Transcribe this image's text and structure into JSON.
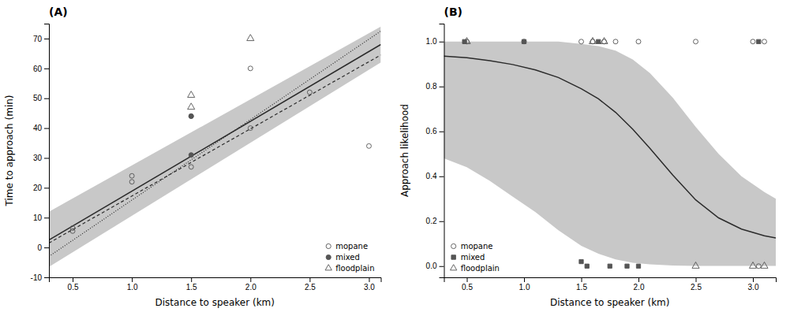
{
  "chart_data": [
    {
      "type": "scatter",
      "title": "(A)",
      "x_label": "Distance to speaker (km)",
      "y_label": "Time to approach (min)",
      "xlim": [
        0.3,
        3.1
      ],
      "ylim": [
        -10,
        75
      ],
      "xticks": [
        0.5,
        {
          "value": 1.0,
          "label": "1.0"
        },
        1.5,
        {
          "value": 2.0,
          "label": "2.0"
        },
        2.5,
        {
          "value": 3.0,
          "label": "3.0"
        }
      ],
      "yticks": [
        -10,
        0,
        10,
        20,
        30,
        40,
        50,
        60,
        70
      ],
      "grid": false,
      "legend": "lower-right",
      "series": [
        {
          "type": "band",
          "color": "#c8c8c8",
          "x": [
            0.3,
            3.1
          ],
          "lower": [
            -6.5,
            62.0
          ],
          "upper": [
            12.0,
            74.0
          ]
        },
        {
          "type": "line",
          "line_style": "dotted",
          "color": "#2b2b2b",
          "x": [
            0.3,
            3.1
          ],
          "values": [
            -3.0,
            72.5
          ]
        },
        {
          "type": "line",
          "line_style": "dashed",
          "color": "#2b2b2b",
          "x": [
            0.3,
            3.1
          ],
          "values": [
            1.5,
            64.5
          ]
        },
        {
          "type": "line",
          "line_style": "solid",
          "color": "#2b2b2b",
          "x": [
            0.3,
            3.1
          ],
          "values": [
            2.5,
            68.0
          ]
        },
        {
          "type": "scatter",
          "name": "mopane",
          "marker": "circle-open",
          "color": "#555555",
          "x": [
            0.5,
            0.5,
            1.0,
            1.0,
            1.5,
            1.5,
            2.0,
            2.0,
            2.5,
            3.0
          ],
          "values": [
            5.5,
            6.5,
            22,
            24,
            27,
            44,
            40,
            60,
            52,
            34
          ]
        },
        {
          "type": "scatter",
          "name": "mixed",
          "marker": "circle",
          "color": "#555555",
          "x": [
            1.5,
            1.5
          ],
          "values": [
            31,
            44
          ]
        },
        {
          "type": "scatter",
          "name": "floodplain",
          "marker": "triangle-open",
          "color": "#555555",
          "x": [
            1.5,
            1.5,
            2.0
          ],
          "values": [
            47,
            51,
            70
          ]
        }
      ]
    },
    {
      "type": "scatter",
      "title": "(B)",
      "x_label": "Distance to speaker (km)",
      "y_label": "Approach likelihood",
      "xlim": [
        0.3,
        3.2
      ],
      "ylim": [
        -0.05,
        1.08
      ],
      "xticks": [
        0.5,
        {
          "value": 1.0,
          "label": "1.0"
        },
        1.5,
        {
          "value": 2.0,
          "label": "2.0"
        },
        2.5,
        {
          "value": 3.0,
          "label": "3.0"
        }
      ],
      "yticks": [
        {
          "value": 0.0,
          "label": "0.0"
        },
        0.2,
        0.4,
        0.6,
        0.8,
        {
          "value": 1.0,
          "label": "1.0"
        }
      ],
      "grid": false,
      "legend": "lower-left",
      "series": [
        {
          "type": "band",
          "color": "#c8c8c8",
          "x": [
            0.3,
            0.5,
            0.7,
            0.9,
            1.1,
            1.3,
            1.5,
            1.65,
            1.8,
            1.95,
            2.1,
            2.3,
            2.5,
            2.7,
            2.9,
            3.1,
            3.2
          ],
          "lower": [
            0.48,
            0.44,
            0.38,
            0.31,
            0.24,
            0.16,
            0.09,
            0.055,
            0.03,
            0.015,
            0.008,
            0.003,
            0.001,
            0.001,
            0.001,
            0.001,
            0.001
          ],
          "upper": [
            1.0,
            1.0,
            1.0,
            1.0,
            1.0,
            1.0,
            0.99,
            0.98,
            0.96,
            0.92,
            0.86,
            0.75,
            0.62,
            0.5,
            0.4,
            0.33,
            0.3
          ]
        },
        {
          "type": "line",
          "line_style": "solid",
          "color": "#2b2b2b",
          "x": [
            0.3,
            0.5,
            0.7,
            0.9,
            1.1,
            1.3,
            1.5,
            1.65,
            1.8,
            1.95,
            2.1,
            2.3,
            2.5,
            2.7,
            2.9,
            3.1,
            3.2
          ],
          "values": [
            0.935,
            0.928,
            0.915,
            0.898,
            0.874,
            0.84,
            0.79,
            0.745,
            0.685,
            0.61,
            0.525,
            0.405,
            0.295,
            0.215,
            0.165,
            0.135,
            0.125
          ]
        },
        {
          "type": "scatter",
          "name": "mopane",
          "marker": "circle-open",
          "color": "#555555",
          "x": [
            0.5,
            1.0,
            1.5,
            1.6,
            1.7,
            1.8,
            2.0,
            2.5,
            3.0,
            3.1,
            3.05
          ],
          "values": [
            1.0,
            1.0,
            1.0,
            1.0,
            1.0,
            1.0,
            1.0,
            1.0,
            1.0,
            1.0,
            0.0
          ]
        },
        {
          "type": "scatter",
          "name": "mixed",
          "marker": "square",
          "color": "#555555",
          "x": [
            0.48,
            1.0,
            1.65,
            3.05,
            1.5,
            1.55,
            1.75,
            1.9,
            2.0
          ],
          "values": [
            1.0,
            1.0,
            1.0,
            1.0,
            0.02,
            0.0,
            0.0,
            0.0,
            0.0
          ]
        },
        {
          "type": "scatter",
          "name": "floodplain",
          "marker": "triangle-open",
          "color": "#555555",
          "x": [
            0.5,
            1.6,
            1.7,
            2.5,
            3.0,
            3.1
          ],
          "values": [
            1.0,
            1.0,
            1.0,
            0.0,
            0.0,
            0.0
          ]
        }
      ]
    }
  ]
}
